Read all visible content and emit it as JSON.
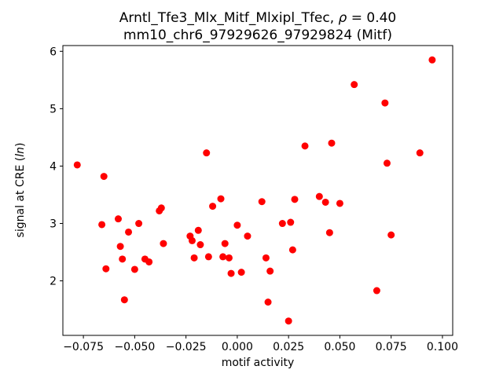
{
  "figure": {
    "title_line1": {
      "prefix": "Arntl_Tfe3_Mlx_Mitf_Mlxipl_Tfec, ",
      "rho": "ρ",
      "suffix": " = 0.40"
    },
    "title_line2": "mm10_chr6_97929626_97929824 (Mitf)",
    "xlabel": "motif activity",
    "ylabel": {
      "prefix": "signal at CRE (",
      "italic": "ln",
      "suffix": ")"
    }
  },
  "chart_data": {
    "type": "scatter",
    "title": "Arntl_Tfe3_Mlx_Mitf_Mlxipl_Tfec, ρ = 0.40",
    "subtitle": "mm10_chr6_97929626_97929824 (Mitf)",
    "xlabel": "motif activity",
    "ylabel": "signal at CRE (ln)",
    "legend": null,
    "grid": false,
    "marker_color": "#ff0000",
    "marker_radius": 4.5,
    "xlim": [
      -0.085,
      0.105
    ],
    "ylim": [
      1.05,
      6.1
    ],
    "xticks": [
      -0.075,
      -0.05,
      -0.025,
      0.0,
      0.025,
      0.05,
      0.075,
      0.1
    ],
    "xtick_labels": [
      "−0.075",
      "−0.050",
      "−0.025",
      "0.000",
      "0.025",
      "0.050",
      "0.075",
      "0.100"
    ],
    "yticks": [
      2,
      3,
      4,
      5,
      6
    ],
    "ytick_labels": [
      "2",
      "3",
      "4",
      "5",
      "6"
    ],
    "points": [
      [
        -0.078,
        4.02
      ],
      [
        -0.066,
        2.98
      ],
      [
        -0.065,
        3.82
      ],
      [
        -0.064,
        2.21
      ],
      [
        -0.058,
        3.08
      ],
      [
        -0.057,
        2.6
      ],
      [
        -0.056,
        2.38
      ],
      [
        -0.055,
        1.67
      ],
      [
        -0.053,
        2.85
      ],
      [
        -0.05,
        2.2
      ],
      [
        -0.048,
        3.0
      ],
      [
        -0.045,
        2.38
      ],
      [
        -0.043,
        2.33
      ],
      [
        -0.038,
        3.22
      ],
      [
        -0.037,
        3.27
      ],
      [
        -0.036,
        2.65
      ],
      [
        -0.023,
        2.78
      ],
      [
        -0.022,
        2.7
      ],
      [
        -0.021,
        2.4
      ],
      [
        -0.019,
        2.88
      ],
      [
        -0.018,
        2.63
      ],
      [
        -0.015,
        4.23
      ],
      [
        -0.014,
        2.42
      ],
      [
        -0.012,
        3.3
      ],
      [
        -0.008,
        3.43
      ],
      [
        -0.007,
        2.42
      ],
      [
        -0.006,
        2.65
      ],
      [
        -0.004,
        2.4
      ],
      [
        -0.003,
        2.13
      ],
      [
        0.0,
        2.97
      ],
      [
        0.002,
        2.15
      ],
      [
        0.005,
        2.78
      ],
      [
        0.012,
        3.38
      ],
      [
        0.014,
        2.4
      ],
      [
        0.015,
        1.63
      ],
      [
        0.016,
        2.17
      ],
      [
        0.022,
        3.0
      ],
      [
        0.025,
        1.3
      ],
      [
        0.026,
        3.02
      ],
      [
        0.027,
        2.54
      ],
      [
        0.028,
        3.42
      ],
      [
        0.033,
        4.35
      ],
      [
        0.04,
        3.47
      ],
      [
        0.043,
        3.37
      ],
      [
        0.045,
        2.84
      ],
      [
        0.046,
        4.4
      ],
      [
        0.05,
        3.35
      ],
      [
        0.057,
        5.42
      ],
      [
        0.068,
        1.83
      ],
      [
        0.072,
        5.1
      ],
      [
        0.073,
        4.05
      ],
      [
        0.075,
        2.8
      ],
      [
        0.089,
        4.23
      ],
      [
        0.095,
        5.85
      ]
    ]
  }
}
